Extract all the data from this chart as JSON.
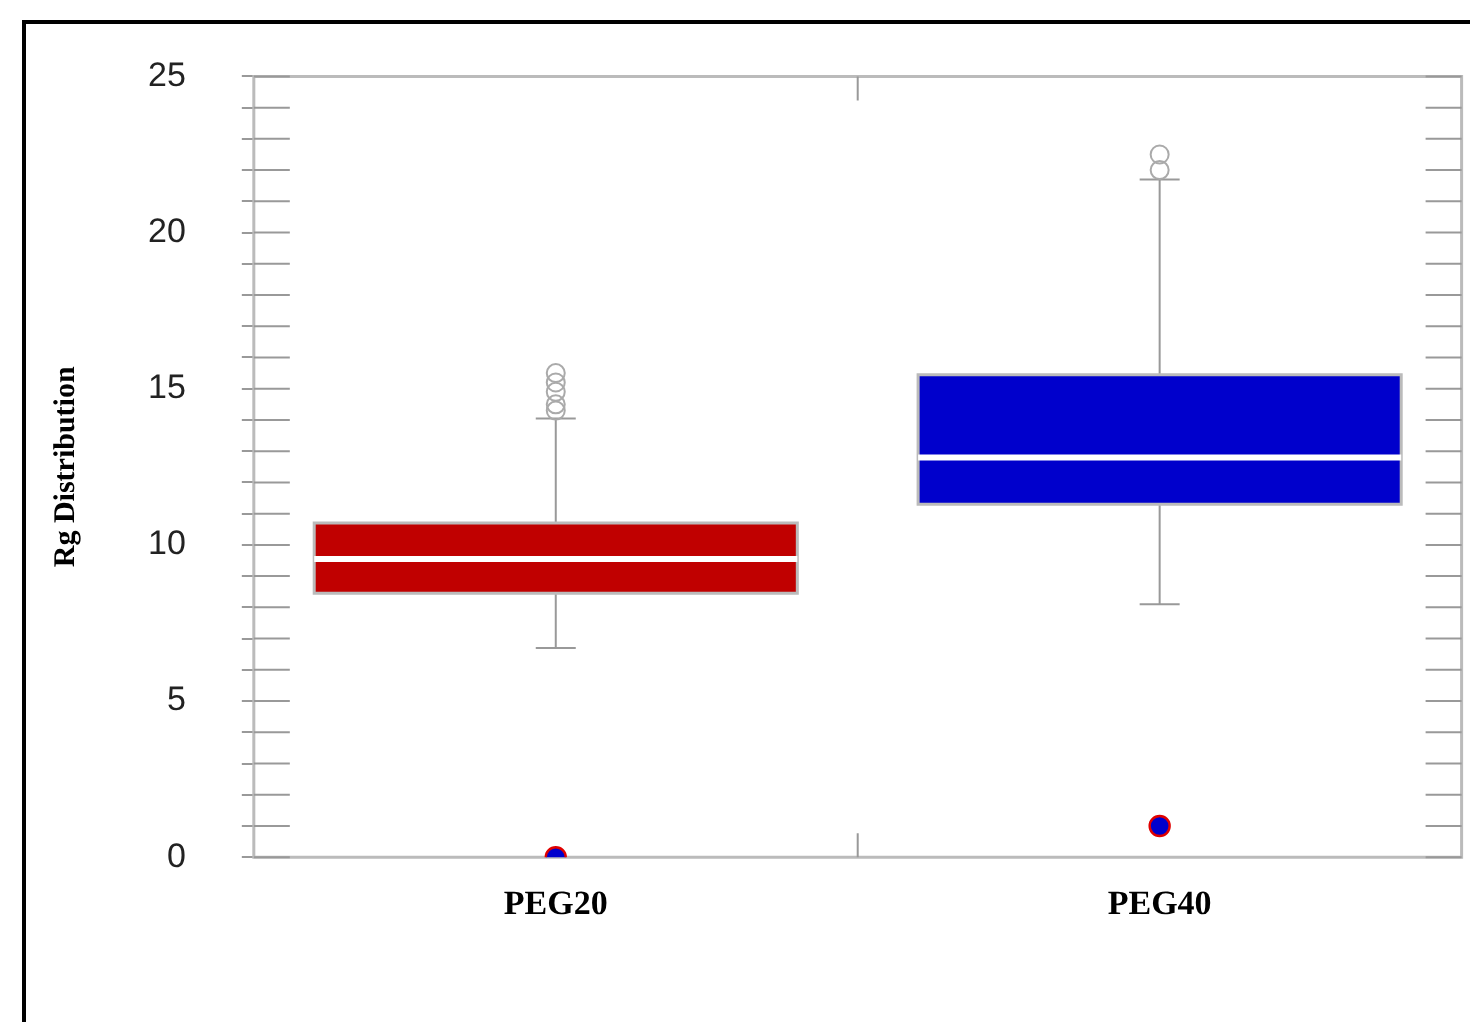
{
  "chart_data": {
    "type": "box",
    "ylabel": "Rg Distribution",
    "categories": [
      "PEG20",
      "PEG40"
    ],
    "colors": [
      "#c00000",
      "#0000cc"
    ],
    "boxes": [
      {
        "low": 6.7,
        "q1": 8.45,
        "median": 9.55,
        "q3": 10.7,
        "high": 14.05,
        "outliers": [
          14.3,
          14.5,
          14.9,
          15.2,
          15.5
        ]
      },
      {
        "low": 8.1,
        "q1": 11.3,
        "median": 12.8,
        "q3": 15.45,
        "high": 21.7,
        "outliers": [
          22.0,
          22.5
        ]
      }
    ],
    "series": [
      {
        "type": "scatter",
        "x": [
          "PEG20",
          "PEG40"
        ],
        "values": [
          0,
          1
        ],
        "color": "#0000cc"
      }
    ],
    "marker": "circle",
    "ylim": [
      0,
      25
    ],
    "yticks": [
      0,
      {
        "value": 1,
        "label": null
      },
      {
        "value": 2,
        "label": null
      },
      {
        "value": 3,
        "label": null
      },
      {
        "value": 4,
        "label": null
      },
      5,
      {
        "value": 6,
        "label": null
      },
      {
        "value": 7,
        "label": null
      },
      {
        "value": 8,
        "label": null
      },
      {
        "value": 9,
        "label": null
      },
      10,
      {
        "value": 11,
        "label": null
      },
      {
        "value": 12,
        "label": null
      },
      {
        "value": 13,
        "label": null
      },
      {
        "value": 14,
        "label": null
      },
      15,
      {
        "value": 16,
        "label": null
      },
      {
        "value": 17,
        "label": null
      },
      {
        "value": 18,
        "label": null
      },
      {
        "value": 19,
        "label": null
      },
      20,
      {
        "value": 21,
        "label": null
      },
      {
        "value": 22,
        "label": null
      },
      {
        "value": 23,
        "label": null
      },
      {
        "value": 24,
        "label": null
      },
      25
    ]
  }
}
